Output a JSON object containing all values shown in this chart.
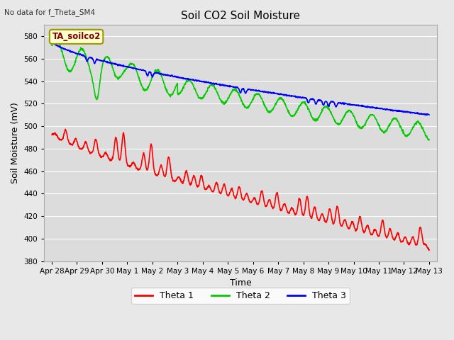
{
  "title": "Soil CO2 Soil Moisture",
  "no_data_text": "No data for f_Theta_SM4",
  "xlabel": "Time",
  "ylabel": "Soil Moisture (mV)",
  "ylim": [
    380,
    590
  ],
  "yticks": [
    380,
    400,
    420,
    440,
    460,
    480,
    500,
    520,
    540,
    560,
    580
  ],
  "background_color": "#e8e8e8",
  "plot_bg_color": "#dcdcdc",
  "annotation_text": "TA_soilco2",
  "annotation_box_color": "#ffffcc",
  "annotation_box_edge": "#999900",
  "colors": {
    "theta1": "#ff0000",
    "theta2": "#00cc00",
    "theta3": "#0000ff"
  },
  "legend_labels": [
    "Theta 1",
    "Theta 2",
    "Theta 3"
  ],
  "x_tick_labels": [
    "Apr 28",
    "Apr 29",
    "Apr 30",
    "May 1",
    "May 2",
    "May 3",
    "May 4",
    "May 5",
    "May 6",
    "May 7",
    "May 8",
    "May 9",
    "May 10",
    "May 11",
    "May 12",
    "May 13"
  ],
  "num_points": 1500
}
